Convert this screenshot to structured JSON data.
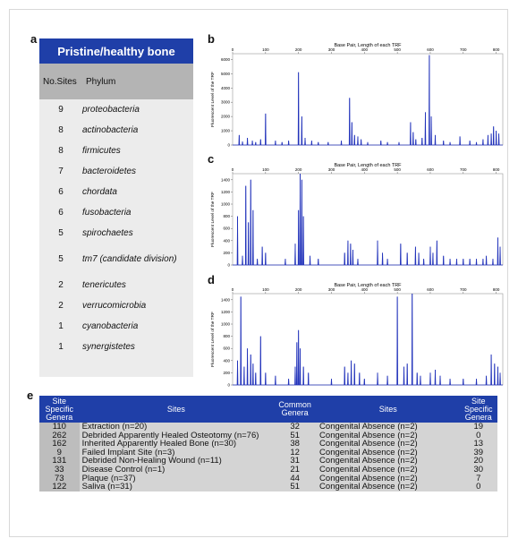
{
  "panel_letters": {
    "a": "a",
    "b": "b",
    "c": "c",
    "d": "d",
    "e": "e"
  },
  "phylum_table": {
    "title": "Pristine/healthy bone",
    "col_sites": "No.Sites",
    "col_phylum": "Phylum",
    "rows": [
      {
        "sites": "9",
        "phylum": "proteobacteria"
      },
      {
        "sites": "8",
        "phylum": "actinobacteria"
      },
      {
        "sites": "8",
        "phylum": "firmicutes"
      },
      {
        "sites": "7",
        "phylum": "bacteroidetes"
      },
      {
        "sites": "6",
        "phylum": "chordata"
      },
      {
        "sites": "6",
        "phylum": "fusobacteria"
      },
      {
        "sites": "5",
        "phylum": "spirochaetes"
      },
      {
        "sites": "5",
        "phylum": "tm7 (candidate division)"
      },
      {
        "sites": "2",
        "phylum": "tenericutes"
      },
      {
        "sites": "2",
        "phylum": "verrucomicrobia"
      },
      {
        "sites": "1",
        "phylum": "cyanobacteria"
      },
      {
        "sites": "1",
        "phylum": "synergistetes"
      }
    ]
  },
  "chart_data": [
    {
      "type": "line",
      "panel": "b",
      "title": "Base Pair, Length of each TRF",
      "ylabel": "Fluorescent Level of the TRF",
      "xlim": [
        0,
        820
      ],
      "ylim": [
        0,
        6400
      ],
      "xticks": [
        0,
        100,
        200,
        300,
        400,
        500,
        600,
        700,
        800
      ],
      "yticks": [
        0,
        1000,
        2000,
        3000,
        4000,
        5000,
        6000
      ],
      "color": "#2233bb",
      "peaks": [
        [
          20,
          700
        ],
        [
          30,
          250
        ],
        [
          45,
          500
        ],
        [
          60,
          300
        ],
        [
          70,
          200
        ],
        [
          85,
          400
        ],
        [
          100,
          2200
        ],
        [
          130,
          300
        ],
        [
          150,
          200
        ],
        [
          170,
          300
        ],
        [
          200,
          5100
        ],
        [
          210,
          2000
        ],
        [
          220,
          500
        ],
        [
          240,
          300
        ],
        [
          260,
          200
        ],
        [
          290,
          200
        ],
        [
          330,
          300
        ],
        [
          355,
          3300
        ],
        [
          362,
          1600
        ],
        [
          370,
          700
        ],
        [
          380,
          600
        ],
        [
          390,
          400
        ],
        [
          410,
          200
        ],
        [
          450,
          300
        ],
        [
          470,
          200
        ],
        [
          505,
          200
        ],
        [
          540,
          1600
        ],
        [
          548,
          900
        ],
        [
          556,
          400
        ],
        [
          575,
          500
        ],
        [
          585,
          2300
        ],
        [
          597,
          6300
        ],
        [
          603,
          2000
        ],
        [
          615,
          700
        ],
        [
          640,
          300
        ],
        [
          660,
          200
        ],
        [
          690,
          600
        ],
        [
          720,
          300
        ],
        [
          740,
          200
        ],
        [
          760,
          400
        ],
        [
          775,
          700
        ],
        [
          785,
          800
        ],
        [
          792,
          1300
        ],
        [
          800,
          1000
        ],
        [
          808,
          800
        ]
      ]
    },
    {
      "type": "line",
      "panel": "c",
      "title": "Base Pair, Length of each TRF",
      "ylabel": "Fluorescent Level of the TRF",
      "xlim": [
        0,
        820
      ],
      "ylim": [
        0,
        1500
      ],
      "xticks": [
        0,
        100,
        200,
        300,
        400,
        500,
        600,
        700,
        800
      ],
      "yticks": [
        0,
        200,
        400,
        600,
        800,
        1000,
        1200,
        1400
      ],
      "color": "#2233bb",
      "peaks": [
        [
          15,
          800
        ],
        [
          30,
          150
        ],
        [
          40,
          1300
        ],
        [
          48,
          700
        ],
        [
          55,
          1400
        ],
        [
          62,
          900
        ],
        [
          75,
          100
        ],
        [
          90,
          300
        ],
        [
          100,
          200
        ],
        [
          160,
          100
        ],
        [
          190,
          350
        ],
        [
          200,
          900
        ],
        [
          205,
          1500
        ],
        [
          210,
          1400
        ],
        [
          215,
          800
        ],
        [
          235,
          150
        ],
        [
          260,
          100
        ],
        [
          340,
          200
        ],
        [
          350,
          400
        ],
        [
          358,
          350
        ],
        [
          365,
          250
        ],
        [
          380,
          100
        ],
        [
          440,
          400
        ],
        [
          455,
          200
        ],
        [
          470,
          100
        ],
        [
          510,
          350
        ],
        [
          530,
          200
        ],
        [
          555,
          300
        ],
        [
          565,
          200
        ],
        [
          580,
          100
        ],
        [
          600,
          300
        ],
        [
          608,
          200
        ],
        [
          620,
          400
        ],
        [
          640,
          150
        ],
        [
          660,
          100
        ],
        [
          680,
          100
        ],
        [
          700,
          100
        ],
        [
          720,
          100
        ],
        [
          740,
          100
        ],
        [
          760,
          100
        ],
        [
          770,
          150
        ],
        [
          790,
          100
        ],
        [
          805,
          450
        ],
        [
          812,
          300
        ]
      ]
    },
    {
      "type": "line",
      "panel": "d",
      "title": "Base Pair, Length of each TRF",
      "ylabel": "Fluorescent Level of the TRF",
      "xlim": [
        0,
        820
      ],
      "ylim": [
        0,
        1500
      ],
      "xticks": [
        0,
        100,
        200,
        300,
        400,
        500,
        600,
        700,
        800
      ],
      "yticks": [
        0,
        200,
        400,
        600,
        800,
        1000,
        1200,
        1400
      ],
      "color": "#2233bb",
      "peaks": [
        [
          15,
          400
        ],
        [
          25,
          1450
        ],
        [
          35,
          300
        ],
        [
          45,
          600
        ],
        [
          55,
          500
        ],
        [
          62,
          350
        ],
        [
          70,
          200
        ],
        [
          85,
          800
        ],
        [
          100,
          200
        ],
        [
          130,
          150
        ],
        [
          170,
          100
        ],
        [
          190,
          300
        ],
        [
          195,
          700
        ],
        [
          200,
          900
        ],
        [
          205,
          600
        ],
        [
          215,
          300
        ],
        [
          230,
          200
        ],
        [
          300,
          100
        ],
        [
          340,
          300
        ],
        [
          350,
          200
        ],
        [
          360,
          400
        ],
        [
          370,
          350
        ],
        [
          385,
          200
        ],
        [
          400,
          100
        ],
        [
          440,
          200
        ],
        [
          470,
          150
        ],
        [
          500,
          1450
        ],
        [
          520,
          300
        ],
        [
          530,
          350
        ],
        [
          545,
          1500
        ],
        [
          560,
          200
        ],
        [
          570,
          150
        ],
        [
          600,
          200
        ],
        [
          615,
          250
        ],
        [
          630,
          150
        ],
        [
          660,
          100
        ],
        [
          700,
          100
        ],
        [
          740,
          100
        ],
        [
          770,
          150
        ],
        [
          785,
          500
        ],
        [
          795,
          350
        ],
        [
          805,
          300
        ],
        [
          812,
          200
        ]
      ]
    }
  ],
  "genera_table": {
    "headers": [
      "Site Specific Genera",
      "Sites",
      "Common Genera",
      "Sites",
      "Site Specific Genera"
    ],
    "rows": [
      {
        "ssg1": "110",
        "site1": "Extraction (n=20)",
        "common": "32",
        "site2": "Congenital Absence (n=2)",
        "ssg2": "19"
      },
      {
        "ssg1": "262",
        "site1": "Debrided Apparently Healed Osteotomy (n=76)",
        "common": "51",
        "site2": "Congenital Absence (n=2)",
        "ssg2": "0"
      },
      {
        "ssg1": "162",
        "site1": "Inherited Apparently Healed Bone (n=30)",
        "common": "38",
        "site2": "Congenital Absence (n=2)",
        "ssg2": "13"
      },
      {
        "ssg1": "9",
        "site1": "Failed Implant Site (n=3)",
        "common": "12",
        "site2": "Congenital Absence (n=2)",
        "ssg2": "39"
      },
      {
        "ssg1": "131",
        "site1": "Debrided Non-Healing Wound (n=11)",
        "common": "31",
        "site2": "Congenital Absence (n=2)",
        "ssg2": "20"
      },
      {
        "ssg1": "33",
        "site1": "Disease Control (n=1)",
        "common": "21",
        "site2": "Congenital Absence (n=2)",
        "ssg2": "30"
      },
      {
        "ssg1": "73",
        "site1": "Plaque (n=37)",
        "common": "44",
        "site2": "Congenital Absence (n=2)",
        "ssg2": "7"
      },
      {
        "ssg1": "122",
        "site1": "Saliva (n=31)",
        "common": "51",
        "site2": "Congenital Absence (n=2)",
        "ssg2": "0"
      }
    ]
  }
}
